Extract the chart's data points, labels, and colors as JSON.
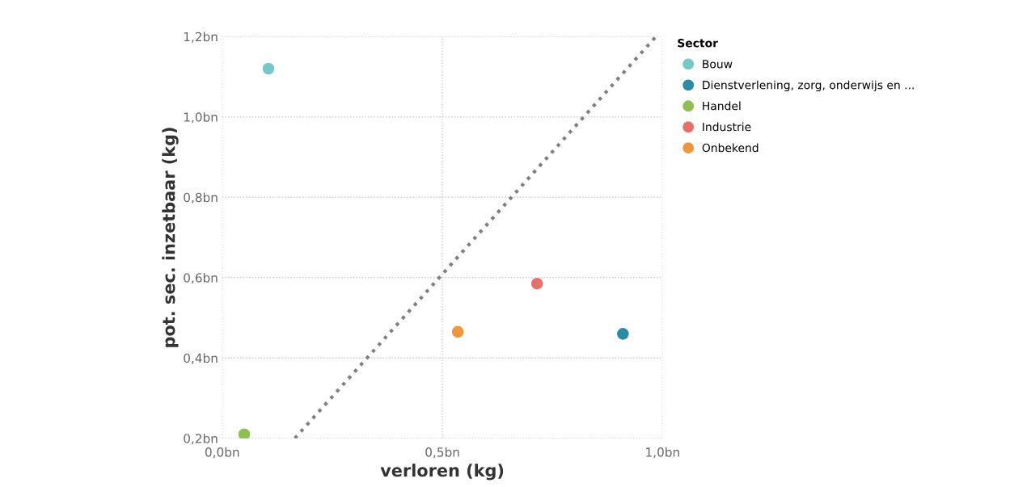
{
  "chart_data": {
    "type": "scatter",
    "xlabel": "verloren (kg)",
    "ylabel": "pot. sec. inzetbaar (kg)",
    "legend_title": "Sector",
    "legend": "top right",
    "grid": true,
    "marker": "circle",
    "xlim": [
      0,
      1.0
    ],
    "ylim": [
      0.2,
      1.2
    ],
    "xticks": [
      {
        "value": 0,
        "label": "0,0bn"
      },
      {
        "value": 0.5,
        "label": "0,5bn"
      },
      {
        "value": 1.0,
        "label": "1,0bn"
      }
    ],
    "yticks": [
      {
        "value": 0.2,
        "label": "0,2bn"
      },
      {
        "value": 0.4,
        "label": "0,4bn"
      },
      {
        "value": 0.6,
        "label": "0,6bn"
      },
      {
        "value": 0.8,
        "label": "0,8bn"
      },
      {
        "value": 1.0,
        "label": "1,0bn"
      },
      {
        "value": 1.2,
        "label": "1,2bn"
      }
    ],
    "series": [
      {
        "name": "Bouw",
        "color": "#74c8c6",
        "x": [
          0.105
        ],
        "values": [
          1.12
        ]
      },
      {
        "name": "Dienstverlening, zorg, onderwijs en ...",
        "color": "#2b8aa6",
        "x": [
          0.91
        ],
        "values": [
          0.46
        ]
      },
      {
        "name": "Handel",
        "color": "#8cc152",
        "x": [
          0.05
        ],
        "values": [
          0.21
        ]
      },
      {
        "name": "Industrie",
        "color": "#e8706a",
        "x": [
          0.715
        ],
        "values": [
          0.585
        ]
      },
      {
        "name": "Onbekend",
        "color": "#f0963a",
        "x": [
          0.535
        ],
        "values": [
          0.465
        ]
      },
      {
        "type": "line",
        "color": "#808080",
        "line_style": "dotted",
        "marker": "none",
        "x": [
          0.165,
          0.985
        ],
        "values": [
          0.2,
          1.2
        ]
      }
    ]
  }
}
